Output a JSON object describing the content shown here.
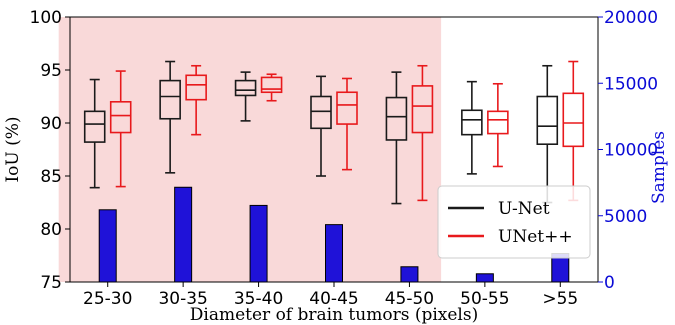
{
  "chart_data": {
    "type": "box",
    "categories": [
      "25-30",
      "30-35",
      "35-40",
      "40-45",
      "45-50",
      "50-55",
      ">55"
    ],
    "xlabel": "Diameter of brain tumors (pixels)",
    "ylabel_left": "IoU (%)",
    "ylabel_right": "Samples",
    "ylim_left": [
      75,
      100
    ],
    "ylim_right": [
      0,
      20000
    ],
    "yticks_left": [
      "75",
      "80",
      "85",
      "90",
      "95",
      "100"
    ],
    "yticks_right": [
      "0",
      "5000",
      "10000",
      "15000",
      "20000"
    ],
    "shaded_categories": [
      "25-30",
      "30-35",
      "35-40",
      "40-45",
      "45-50"
    ],
    "colors": {
      "shade": "#f9d9d9",
      "unet": "#1a1a1a",
      "unetpp": "#e8191c",
      "bars": "#1f12d8",
      "right_axis": "#0b0bd6"
    },
    "series": [
      {
        "name": "U-Net",
        "boxes": [
          {
            "whislo": 83.9,
            "q1": 88.2,
            "med": 89.9,
            "q3": 91.1,
            "whishi": 94.1
          },
          {
            "whislo": 85.3,
            "q1": 90.4,
            "med": 92.5,
            "q3": 94.0,
            "whishi": 95.8
          },
          {
            "whislo": 90.2,
            "q1": 92.6,
            "med": 93.1,
            "q3": 94.0,
            "whishi": 94.8
          },
          {
            "whislo": 85.0,
            "q1": 89.5,
            "med": 91.1,
            "q3": 92.5,
            "whishi": 94.4
          },
          {
            "whislo": 82.4,
            "q1": 88.4,
            "med": 90.6,
            "q3": 92.4,
            "whishi": 94.8
          },
          {
            "whislo": 85.2,
            "q1": 88.9,
            "med": 90.3,
            "q3": 91.2,
            "whishi": 93.9
          },
          {
            "whislo": 82.5,
            "q1": 88.0,
            "med": 89.7,
            "q3": 92.5,
            "whishi": 95.4
          }
        ]
      },
      {
        "name": "UNet++",
        "boxes": [
          {
            "whislo": 84.0,
            "q1": 89.1,
            "med": 90.7,
            "q3": 92.0,
            "whishi": 94.9
          },
          {
            "whislo": 88.9,
            "q1": 92.2,
            "med": 93.6,
            "q3": 94.5,
            "whishi": 95.4
          },
          {
            "whislo": 92.1,
            "q1": 92.9,
            "med": 93.2,
            "q3": 94.3,
            "whishi": 94.6
          },
          {
            "whislo": 85.6,
            "q1": 89.9,
            "med": 91.7,
            "q3": 92.9,
            "whishi": 94.2
          },
          {
            "whislo": 82.7,
            "q1": 89.1,
            "med": 91.6,
            "q3": 93.5,
            "whishi": 95.4
          },
          {
            "whislo": 85.9,
            "q1": 89.0,
            "med": 90.3,
            "q3": 91.1,
            "whishi": 93.7
          },
          {
            "whislo": 82.7,
            "q1": 87.8,
            "med": 90.0,
            "q3": 92.8,
            "whishi": 95.8
          }
        ]
      }
    ],
    "samples": {
      "name": "Samples",
      "values": [
        5450,
        7150,
        5780,
        4330,
        1150,
        620,
        2150
      ]
    },
    "legend": {
      "position": "lower-right",
      "entries": [
        "U-Net",
        "UNet++"
      ]
    },
    "grid": false
  }
}
